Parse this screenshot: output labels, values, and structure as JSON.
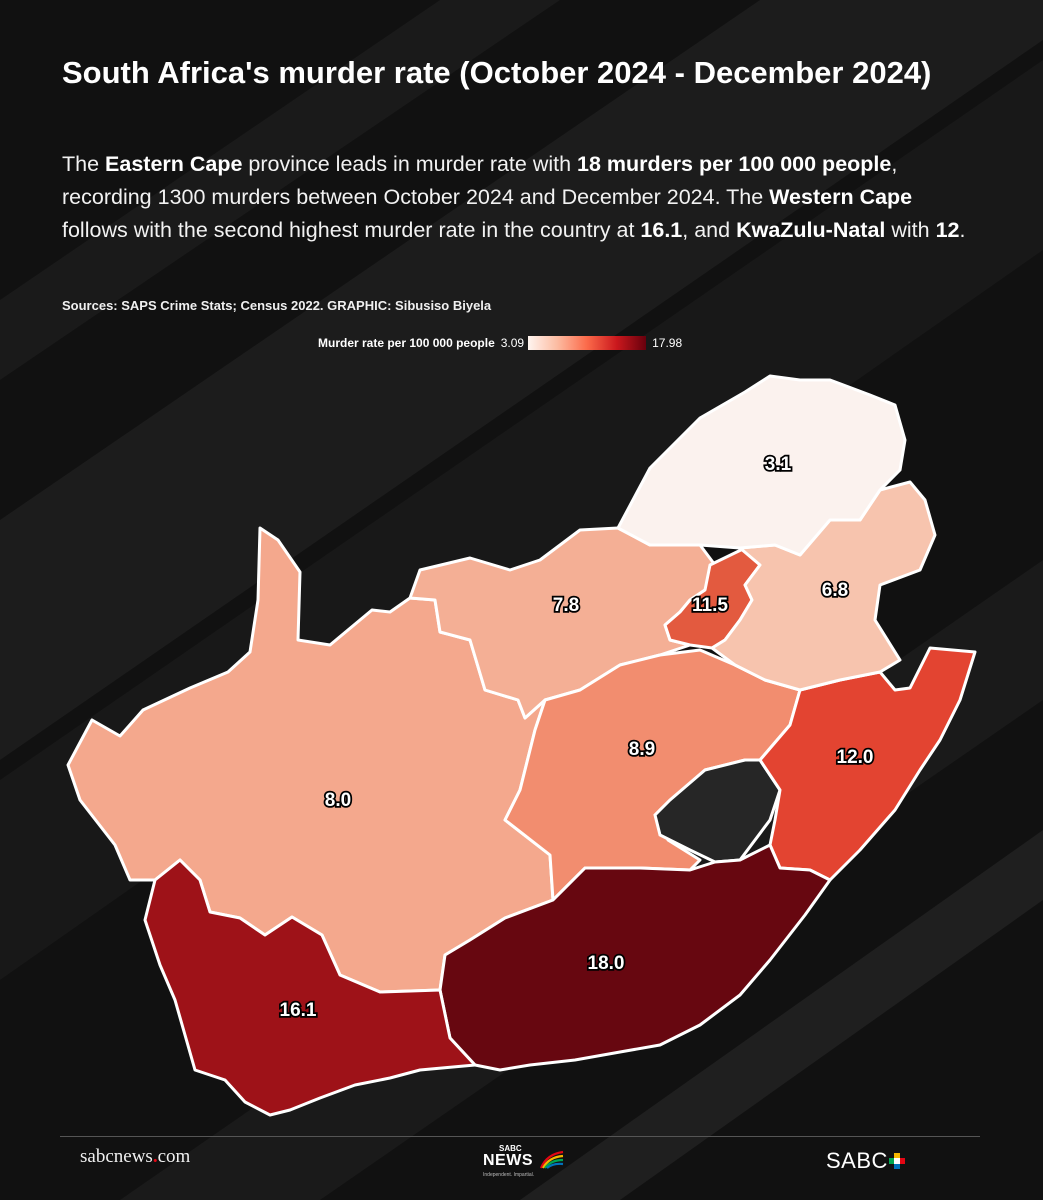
{
  "header": {
    "title": "South Africa's murder rate (October 2024 - December 2024)",
    "summary_parts": [
      {
        "text": "The ",
        "bold": false
      },
      {
        "text": "Eastern Cape",
        "bold": true
      },
      {
        "text": " province leads in murder rate with ",
        "bold": false
      },
      {
        "text": "18 murders per 100 000 people",
        "bold": true
      },
      {
        "text": ", recording 1300 murders between October 2024 and December 2024. The ",
        "bold": false
      },
      {
        "text": "Western Cape",
        "bold": true
      },
      {
        "text": " follows with the second highest murder rate in the country at ",
        "bold": false
      },
      {
        "text": "16.1",
        "bold": true
      },
      {
        "text": ", and ",
        "bold": false
      },
      {
        "text": "KwaZulu-Natal",
        "bold": true
      },
      {
        "text": " with ",
        "bold": false
      },
      {
        "text": "12",
        "bold": true
      },
      {
        "text": ".",
        "bold": false
      }
    ],
    "sources": "Sources: SAPS Crime Stats; Census 2022. GRAPHIC: Sibusiso Biyela"
  },
  "legend": {
    "title": "Murder rate per 100 000 people",
    "min_label": "3.09",
    "max_label": "17.98",
    "colors": [
      "#fff5f0",
      "#fcbba1",
      "#fb6a4a",
      "#cb181d",
      "#67000d"
    ]
  },
  "chart_data": {
    "type": "choropleth",
    "scale": {
      "min": 3.09,
      "max": 17.98
    },
    "regions": [
      {
        "key": "limpopo",
        "label": "3.1",
        "value": 3.1,
        "color": "#fbf2ee"
      },
      {
        "key": "mpumalanga",
        "label": "6.8",
        "value": 6.8,
        "color": "#f7c4ae"
      },
      {
        "key": "north_west",
        "label": "7.8",
        "value": 7.8,
        "color": "#f4af95"
      },
      {
        "key": "gauteng",
        "label": "11.5",
        "value": 11.5,
        "color": "#e35a3f"
      },
      {
        "key": "northern_cape",
        "label": "8.0",
        "value": 8.0,
        "color": "#f4a88d"
      },
      {
        "key": "free_state",
        "label": "8.9",
        "value": 8.9,
        "color": "#f28d6f"
      },
      {
        "key": "kwazulu_natal",
        "label": "12.0",
        "value": 12.0,
        "color": "#e34431"
      },
      {
        "key": "eastern_cape",
        "label": "18.0",
        "value": 18.0,
        "color": "#670710"
      },
      {
        "key": "western_cape",
        "label": "16.1",
        "value": 16.1,
        "color": "#9e1218"
      }
    ]
  },
  "footer": {
    "site_prefix": "sabcnews",
    "site_dot": ".",
    "site_suffix": "com",
    "news_logo_small": "SABC",
    "news_logo_big": "NEWS",
    "news_logo_tag": "Independent. Impartial.",
    "plus_logo_word": "SABC"
  }
}
